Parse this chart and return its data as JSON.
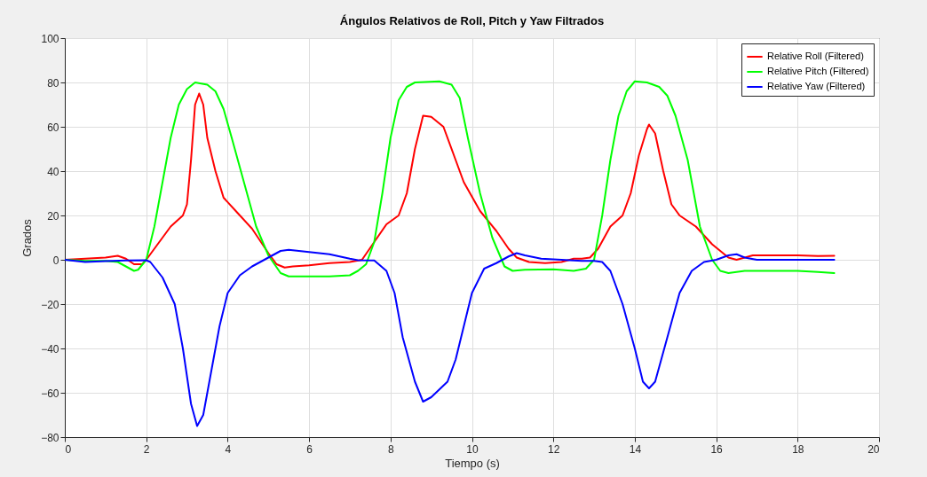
{
  "chart_data": {
    "type": "line",
    "title": "Ángulos Relativos de Roll, Pitch y Yaw Filtrados",
    "xlabel": "Tiempo (s)",
    "ylabel": "Grados",
    "xlim": [
      0,
      20
    ],
    "xticks": [
      0,
      2,
      4,
      6,
      8,
      10,
      12,
      14,
      16,
      18,
      20
    ],
    "ylim": [
      -80,
      100
    ],
    "yticks": [
      -80,
      -60,
      -40,
      -20,
      0,
      20,
      40,
      60,
      80,
      100
    ],
    "grid": true,
    "legend": "top right",
    "marker": "none",
    "line_style": "solid",
    "series": [
      {
        "name": "Relative Roll (Filtered)",
        "color": "#ff0000",
        "x": [
          0,
          0.5,
          1,
          1.3,
          1.5,
          1.7,
          1.9,
          2.0,
          2.2,
          2.4,
          2.6,
          2.9,
          3.0,
          3.1,
          3.2,
          3.3,
          3.4,
          3.5,
          3.7,
          3.9,
          4.2,
          4.6,
          5.0,
          5.2,
          5.4,
          5.6,
          6.0,
          6.5,
          7.0,
          7.3,
          7.6,
          7.9,
          8.2,
          8.4,
          8.6,
          8.8,
          9.0,
          9.3,
          9.6,
          9.8,
          10.2,
          10.6,
          10.9,
          11.1,
          11.4,
          11.8,
          12.2,
          12.5,
          12.7,
          12.9,
          13.1,
          13.4,
          13.7,
          13.9,
          14.1,
          14.3,
          14.35,
          14.5,
          14.7,
          14.9,
          15.1,
          15.5,
          15.9,
          16.3,
          16.5,
          16.9,
          17.5,
          18,
          18.5,
          18.9
        ],
        "values": [
          0,
          0.5,
          1,
          1.8,
          0.5,
          -2,
          -2,
          0,
          5,
          10,
          15,
          20,
          25,
          45,
          70,
          75,
          70,
          55,
          40,
          28,
          22,
          14,
          3,
          -2,
          -3.5,
          -3,
          -2.5,
          -1.5,
          -1,
          0,
          8,
          16,
          20,
          30,
          50,
          65,
          64.5,
          60,
          45,
          35,
          22,
          13,
          5,
          1,
          -1,
          -1.5,
          -1,
          0.5,
          0.5,
          1,
          5,
          15,
          20,
          30,
          47,
          59,
          61,
          57,
          40,
          25,
          20,
          15,
          7,
          1,
          0,
          2,
          2,
          2,
          1.7,
          1.8
        ]
      },
      {
        "name": "Relative Pitch (Filtered)",
        "color": "#00ff00",
        "x": [
          0,
          0.5,
          1,
          1.3,
          1.5,
          1.7,
          1.8,
          2.0,
          2.2,
          2.4,
          2.6,
          2.8,
          3.0,
          3.2,
          3.5,
          3.7,
          3.9,
          4.1,
          4.4,
          4.7,
          5.0,
          5.3,
          5.5,
          6.0,
          6.5,
          7.0,
          7.2,
          7.4,
          7.6,
          7.8,
          8.0,
          8.2,
          8.4,
          8.6,
          9.2,
          9.5,
          9.7,
          9.9,
          10.2,
          10.5,
          10.8,
          11.0,
          11.3,
          12.0,
          12.5,
          12.8,
          13.0,
          13.2,
          13.4,
          13.6,
          13.8,
          14.0,
          14.3,
          14.6,
          14.8,
          15.0,
          15.3,
          15.6,
          15.9,
          16.1,
          16.3,
          16.7,
          17.5,
          18,
          18.5,
          18.9
        ],
        "values": [
          0,
          -0.5,
          -0.5,
          -1,
          -3,
          -5,
          -4.5,
          0,
          15,
          35,
          55,
          70,
          77,
          80,
          79,
          76,
          68,
          55,
          35,
          15,
          2,
          -6,
          -7.5,
          -7.5,
          -7.5,
          -7,
          -5,
          -2,
          8,
          30,
          55,
          72,
          78,
          80,
          80.5,
          79,
          73,
          55,
          30,
          10,
          -3,
          -5,
          -4.5,
          -4.3,
          -5,
          -4,
          0,
          20,
          45,
          65,
          76,
          80.5,
          80,
          78,
          74,
          65,
          45,
          15,
          0,
          -5,
          -6,
          -5,
          -5,
          -5,
          -5.5,
          -6
        ]
      },
      {
        "name": "Relative Yaw (Filtered)",
        "color": "#0000ff",
        "x": [
          0,
          0.5,
          1,
          1.5,
          2.0,
          2.1,
          2.4,
          2.7,
          2.9,
          3.1,
          3.25,
          3.4,
          3.6,
          3.8,
          4.0,
          4.3,
          4.6,
          5.0,
          5.3,
          5.5,
          6.0,
          6.5,
          7.0,
          7.2,
          7.6,
          7.9,
          8.1,
          8.3,
          8.6,
          8.8,
          9.0,
          9.4,
          9.6,
          9.8,
          10.0,
          10.3,
          10.6,
          10.9,
          11.1,
          11.3,
          11.7,
          12.2,
          12.7,
          13.0,
          13.2,
          13.4,
          13.7,
          14.0,
          14.2,
          14.35,
          14.5,
          14.8,
          15.1,
          15.4,
          15.7,
          16.0,
          16.3,
          16.5,
          16.7,
          17.0,
          18.0,
          18.9
        ],
        "values": [
          0,
          -1,
          -0.6,
          -0.3,
          -0.2,
          -1,
          -8,
          -20,
          -40,
          -65,
          -75,
          -70,
          -50,
          -30,
          -15,
          -7,
          -3,
          1,
          4,
          4.5,
          3.5,
          2.5,
          0.5,
          -0.2,
          -0.3,
          -5,
          -15,
          -35,
          -55,
          -64,
          -62,
          -55,
          -45,
          -30,
          -15,
          -4,
          -1.5,
          1.5,
          3,
          2,
          0.5,
          0,
          -0.5,
          -0.5,
          -1,
          -5,
          -20,
          -40,
          -55,
          -58,
          -55,
          -35,
          -15,
          -5,
          -1,
          0,
          2,
          2.5,
          1,
          0,
          0,
          0
        ]
      }
    ]
  }
}
